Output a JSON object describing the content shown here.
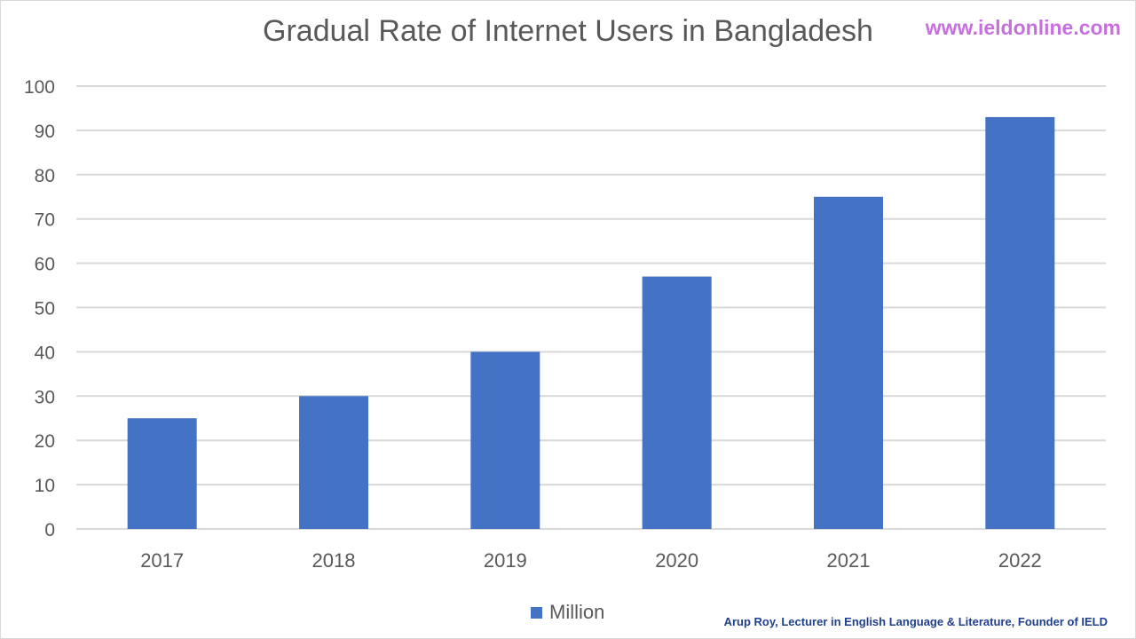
{
  "page": {
    "watermark": "www.ieldonline.com",
    "credit": "Arup Roy, Lecturer in English Language & Literature, Founder of IELD"
  },
  "colors": {
    "bar": "#4472c4",
    "grid": "#d9d9d9",
    "text": "#595959",
    "watermark": "#c86fe0",
    "credit": "#1f3f8f"
  },
  "chart_data": {
    "type": "bar",
    "title": "Gradual Rate of Internet Users in Bangladesh",
    "xlabel": "",
    "ylabel": "",
    "categories": [
      "2017",
      "2018",
      "2019",
      "2020",
      "2021",
      "2022"
    ],
    "series": [
      {
        "name": "Million",
        "values": [
          25,
          30,
          40,
          57,
          75,
          93
        ]
      }
    ],
    "ylim": [
      0,
      100
    ],
    "yticks": [
      0,
      10,
      20,
      30,
      40,
      50,
      60,
      70,
      80,
      90,
      100
    ],
    "grid": true,
    "legend": "bottom"
  }
}
